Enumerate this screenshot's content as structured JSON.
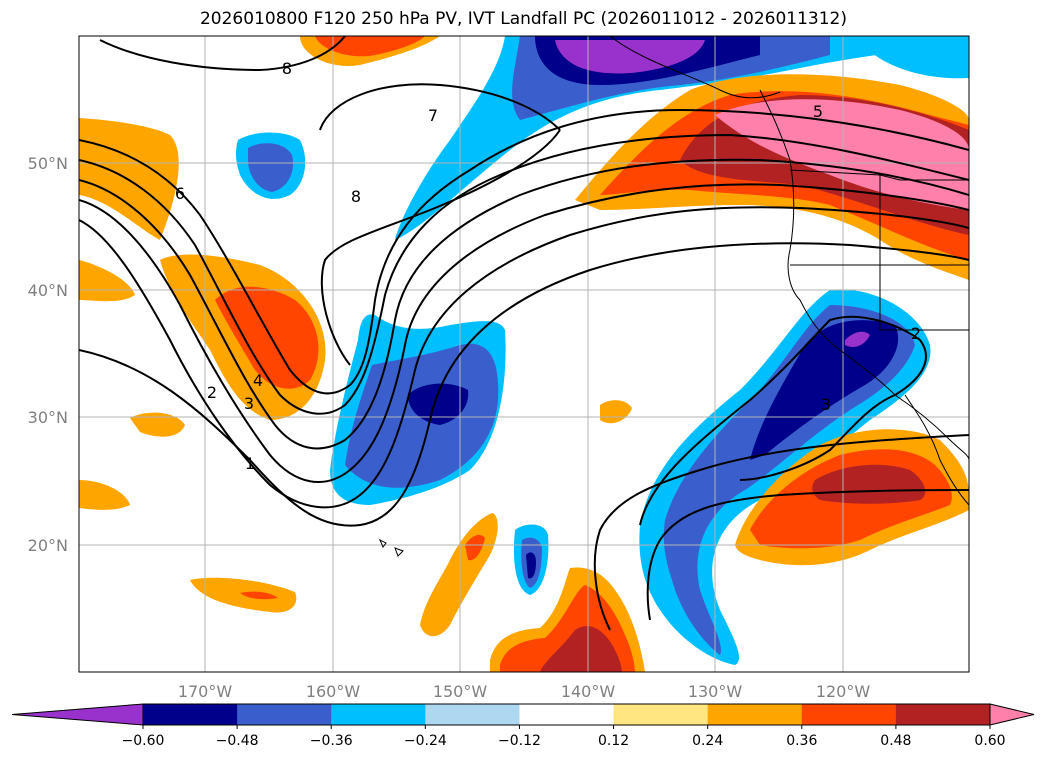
{
  "title": "2026010800 F120 250 hPa PV, IVT Landfall PC (2026011012 - 2026011312)",
  "map": {
    "lat_labels": [
      "50°N",
      "40°N",
      "30°N",
      "20°N"
    ],
    "lon_labels": [
      "170°W",
      "160°W",
      "150°W",
      "140°W",
      "130°W",
      "120°W"
    ],
    "gridlines": true,
    "contour_color": "#000000",
    "pv_contour_labels": [
      "8",
      "7",
      "6",
      "8",
      "5",
      "4",
      "3",
      "2",
      "1",
      "3",
      "2"
    ]
  },
  "colorbar": {
    "tick_labels": [
      "−0.60",
      "−0.48",
      "−0.36",
      "−0.24",
      "−0.12",
      "0.12",
      "0.24",
      "0.36",
      "0.48",
      "0.60"
    ],
    "colors": [
      "#9932cc",
      "#00008b",
      "#3a5fcd",
      "#00bfff",
      "#add8f0",
      "#ffffff",
      "#ffe680",
      "#ffa500",
      "#ff4500",
      "#b22222",
      "#ff80aa"
    ]
  }
}
